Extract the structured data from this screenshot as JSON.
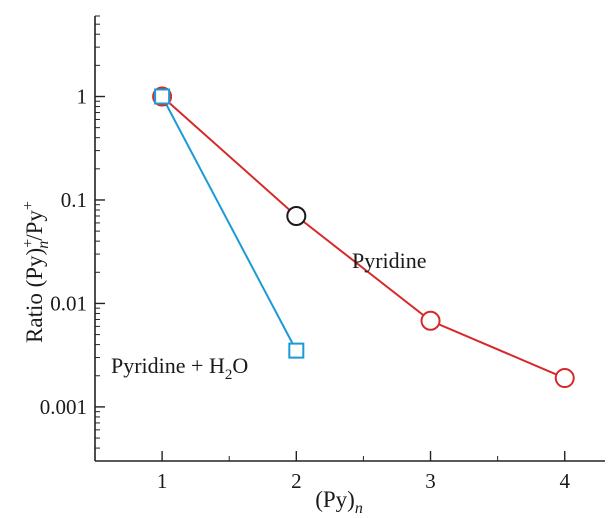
{
  "chart_data": {
    "type": "line",
    "y_scale": "log",
    "xlabel": {
      "base": "(Py)",
      "sub": "n"
    },
    "ylabel": {
      "p1": "Ratio (Py)",
      "sup1": "+",
      "sub1": "n",
      "p2": "/Py",
      "sup2": "+"
    },
    "xlim": [
      0.5,
      4.3
    ],
    "ylim": [
      0.0003,
      6
    ],
    "x_ticks": [
      1,
      2,
      3,
      4
    ],
    "x_tick_labels": [
      "1",
      "2",
      "3",
      "4"
    ],
    "y_ticks": [
      1,
      0.1,
      0.01,
      0.001
    ],
    "y_tick_labels": [
      "1",
      "0.1",
      "0.01",
      "0.001"
    ],
    "grid": false,
    "series": [
      {
        "name": "Pyridine",
        "color": "#d62a2a",
        "marker": "circle",
        "points": [
          {
            "x": 1,
            "y": 1.0
          },
          {
            "x": 2,
            "y": 0.07,
            "marker_color": "#1a1a1a"
          },
          {
            "x": 3,
            "y": 0.0068
          },
          {
            "x": 4,
            "y": 0.0019
          }
        ]
      },
      {
        "name": "Pyridine + H2O",
        "label_parts": {
          "a": "Pyridine + H",
          "sub": "2",
          "b": "O"
        },
        "color": "#1b9ad6",
        "marker": "square",
        "points": [
          {
            "x": 1,
            "y": 1.0
          },
          {
            "x": 2,
            "y": 0.0035
          }
        ]
      }
    ]
  }
}
